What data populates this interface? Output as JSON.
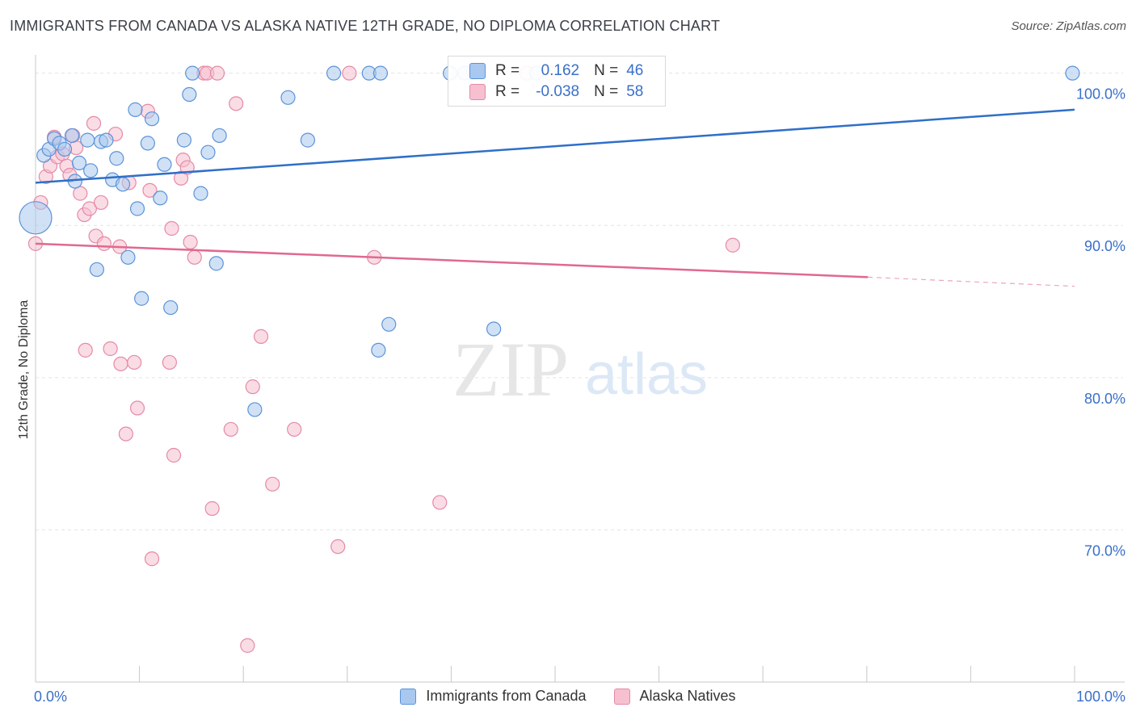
{
  "header": {
    "title": "IMMIGRANTS FROM CANADA VS ALASKA NATIVE 12TH GRADE, NO DIPLOMA CORRELATION CHART",
    "source": "Source: ZipAtlas.com"
  },
  "watermark": {
    "zip": "ZIP",
    "atlas": "atlas"
  },
  "legend": {
    "r_label": "R =",
    "n_label": "N =",
    "rows": [
      {
        "r": "0.162",
        "n": "46"
      },
      {
        "r": "-0.038",
        "n": "58"
      }
    ]
  },
  "colors": {
    "blue_fill": "#a9c8ef",
    "blue_stroke": "#5b93d8",
    "blue_line": "#2f6fc9",
    "pink_fill": "#f6c0d0",
    "pink_stroke": "#e58aa6",
    "pink_line": "#e0698f",
    "axis_text": "#3a6fc8",
    "grid": "#e3e3e3"
  },
  "chart_data": {
    "type": "scatter",
    "title": "IMMIGRANTS FROM CANADA VS ALASKA NATIVE 12TH GRADE, NO DIPLOMA CORRELATION CHART",
    "xlabel": "",
    "ylabel": "12th Grade, No Diploma",
    "xlim": [
      0,
      100
    ],
    "ylim": [
      60,
      101.2
    ],
    "x_tick_labels": [
      "0.0%",
      "100.0%"
    ],
    "y_ticks": [
      {
        "value": 70,
        "label": "70.0%"
      },
      {
        "value": 80,
        "label": "80.0%"
      },
      {
        "value": 90,
        "label": "90.0%"
      },
      {
        "value": 100,
        "label": "100.0%"
      }
    ],
    "series": [
      {
        "name": "Immigrants from Canada",
        "color": "blue",
        "r": 0.162,
        "n": 46,
        "trend": {
          "x0": 0,
          "y0": 92.8,
          "x1": 100,
          "y1": 97.6
        },
        "points": [
          {
            "x": 0.0,
            "y": 90.5,
            "big": true
          },
          {
            "x": 0.8,
            "y": 94.6
          },
          {
            "x": 1.3,
            "y": 95.0
          },
          {
            "x": 1.8,
            "y": 95.7
          },
          {
            "x": 2.3,
            "y": 95.4
          },
          {
            "x": 2.8,
            "y": 95.0
          },
          {
            "x": 3.5,
            "y": 95.9
          },
          {
            "x": 3.8,
            "y": 92.9
          },
          {
            "x": 4.2,
            "y": 94.1
          },
          {
            "x": 5.0,
            "y": 95.6
          },
          {
            "x": 5.3,
            "y": 93.6
          },
          {
            "x": 5.9,
            "y": 87.1
          },
          {
            "x": 6.3,
            "y": 95.5
          },
          {
            "x": 6.8,
            "y": 95.6
          },
          {
            "x": 7.4,
            "y": 93.0
          },
          {
            "x": 7.8,
            "y": 94.4
          },
          {
            "x": 8.4,
            "y": 92.7
          },
          {
            "x": 8.9,
            "y": 87.9
          },
          {
            "x": 9.6,
            "y": 97.6
          },
          {
            "x": 9.8,
            "y": 91.1
          },
          {
            "x": 10.2,
            "y": 85.2
          },
          {
            "x": 10.8,
            "y": 95.4
          },
          {
            "x": 11.2,
            "y": 97.0
          },
          {
            "x": 12.0,
            "y": 91.8
          },
          {
            "x": 12.4,
            "y": 94.0
          },
          {
            "x": 13.0,
            "y": 84.6
          },
          {
            "x": 14.3,
            "y": 95.6
          },
          {
            "x": 14.8,
            "y": 98.6
          },
          {
            "x": 15.1,
            "y": 100.0
          },
          {
            "x": 15.9,
            "y": 92.1
          },
          {
            "x": 16.6,
            "y": 94.8
          },
          {
            "x": 17.4,
            "y": 87.5
          },
          {
            "x": 17.7,
            "y": 95.9
          },
          {
            "x": 21.1,
            "y": 77.9
          },
          {
            "x": 24.3,
            "y": 98.4
          },
          {
            "x": 26.2,
            "y": 95.6
          },
          {
            "x": 28.7,
            "y": 100.0
          },
          {
            "x": 32.1,
            "y": 100.0
          },
          {
            "x": 33.2,
            "y": 100.0
          },
          {
            "x": 33.0,
            "y": 81.8
          },
          {
            "x": 34.0,
            "y": 83.5
          },
          {
            "x": 39.9,
            "y": 100.0
          },
          {
            "x": 41.3,
            "y": 100.0
          },
          {
            "x": 44.1,
            "y": 83.2
          },
          {
            "x": 48.2,
            "y": 100.0
          },
          {
            "x": 99.8,
            "y": 100.0
          }
        ]
      },
      {
        "name": "Alaska Natives",
        "color": "pink",
        "r": -0.038,
        "n": 58,
        "trend": {
          "x0": 0,
          "y0": 88.8,
          "x1": 80.1,
          "y1": 86.6,
          "dash_to_x": 100,
          "dash_to_y": 86.0
        },
        "points": [
          {
            "x": 0.0,
            "y": 88.8
          },
          {
            "x": 0.5,
            "y": 91.5
          },
          {
            "x": 1.0,
            "y": 93.2
          },
          {
            "x": 1.4,
            "y": 93.9
          },
          {
            "x": 1.8,
            "y": 95.8
          },
          {
            "x": 2.1,
            "y": 94.5
          },
          {
            "x": 2.6,
            "y": 94.7
          },
          {
            "x": 3.0,
            "y": 93.9
          },
          {
            "x": 3.3,
            "y": 93.3
          },
          {
            "x": 3.6,
            "y": 95.9
          },
          {
            "x": 3.9,
            "y": 95.1
          },
          {
            "x": 4.3,
            "y": 92.1
          },
          {
            "x": 4.7,
            "y": 90.7
          },
          {
            "x": 4.8,
            "y": 81.8
          },
          {
            "x": 5.2,
            "y": 91.1
          },
          {
            "x": 5.6,
            "y": 96.7
          },
          {
            "x": 5.8,
            "y": 89.3
          },
          {
            "x": 6.3,
            "y": 91.5
          },
          {
            "x": 6.6,
            "y": 88.8
          },
          {
            "x": 7.2,
            "y": 81.9
          },
          {
            "x": 7.7,
            "y": 96.0
          },
          {
            "x": 8.1,
            "y": 88.6
          },
          {
            "x": 8.2,
            "y": 80.9
          },
          {
            "x": 8.7,
            "y": 76.3
          },
          {
            "x": 9.0,
            "y": 92.8
          },
          {
            "x": 9.5,
            "y": 81.0
          },
          {
            "x": 9.8,
            "y": 78.0
          },
          {
            "x": 10.8,
            "y": 97.5
          },
          {
            "x": 11.0,
            "y": 92.3
          },
          {
            "x": 11.2,
            "y": 68.1
          },
          {
            "x": 12.9,
            "y": 81.0
          },
          {
            "x": 13.1,
            "y": 89.8
          },
          {
            "x": 13.3,
            "y": 74.9
          },
          {
            "x": 14.0,
            "y": 93.1
          },
          {
            "x": 14.2,
            "y": 94.3
          },
          {
            "x": 14.6,
            "y": 93.8
          },
          {
            "x": 14.9,
            "y": 88.9
          },
          {
            "x": 15.3,
            "y": 87.9
          },
          {
            "x": 16.2,
            "y": 100.0
          },
          {
            "x": 16.5,
            "y": 100.0
          },
          {
            "x": 17.0,
            "y": 71.4
          },
          {
            "x": 17.5,
            "y": 100.0
          },
          {
            "x": 18.8,
            "y": 76.6
          },
          {
            "x": 19.3,
            "y": 98.0
          },
          {
            "x": 20.4,
            "y": 62.4
          },
          {
            "x": 20.9,
            "y": 79.4
          },
          {
            "x": 21.7,
            "y": 82.7
          },
          {
            "x": 22.8,
            "y": 73.0
          },
          {
            "x": 24.9,
            "y": 76.6
          },
          {
            "x": 29.1,
            "y": 68.9
          },
          {
            "x": 30.2,
            "y": 100.0
          },
          {
            "x": 32.6,
            "y": 87.9
          },
          {
            "x": 38.9,
            "y": 71.8
          },
          {
            "x": 42.1,
            "y": 100.0
          },
          {
            "x": 47.3,
            "y": 100.0
          },
          {
            "x": 49.5,
            "y": 100.0
          },
          {
            "x": 51.0,
            "y": 100.0
          },
          {
            "x": 67.1,
            "y": 88.7
          }
        ]
      }
    ]
  }
}
